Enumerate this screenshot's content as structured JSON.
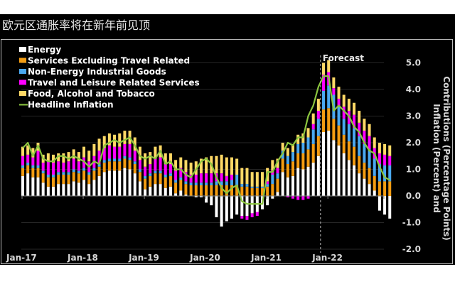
{
  "title": "欧元区通胀率将在新年前见顶",
  "chart_data": {
    "type": "bar",
    "subtype": "stacked-bar-with-line",
    "title": "欧元区通胀率将在新年前见顶",
    "xlabel": "",
    "ylabel": "Inflation (Percent) and Contributions (Percentage Points)",
    "ylim": [
      -2.0,
      5.0
    ],
    "yticks": [
      "5.0",
      "4.0",
      "3.0",
      "2.0",
      "1.0",
      "0.0",
      "-1.0",
      "-2.0"
    ],
    "ytick_values": [
      5,
      4,
      3,
      2,
      1,
      0,
      -1,
      -2
    ],
    "xtick_labels": [
      "Jan-17",
      "Jan-18",
      "Jan-19",
      "Jan-20",
      "Jan-21",
      "Jan-22"
    ],
    "xtick_month_index": [
      0,
      12,
      24,
      36,
      48,
      60
    ],
    "grid": true,
    "legend_position": "top-left",
    "annotation": {
      "label": "Forecast",
      "month_index": 58
    },
    "start_month": "Jan-17",
    "series_colors": {
      "energy": "#ffffff",
      "services": "#f39c12",
      "goods": "#4aa8f0",
      "travel": "#ff00ff",
      "food": "#ffd966",
      "headline": "#8cc63f"
    },
    "legend": [
      {
        "key": "energy",
        "label": "Energy"
      },
      {
        "key": "services",
        "label": "Services Excluding Travel Related"
      },
      {
        "key": "goods",
        "label": "Non-Energy Industrial Goods"
      },
      {
        "key": "travel",
        "label": "Travel and Leisure Related Services"
      },
      {
        "key": "food",
        "label": "Food, Alcohol and Tobacco"
      },
      {
        "key": "headline",
        "label": "Headline Inflation"
      }
    ],
    "series": [
      {
        "name": "Energy",
        "key": "energy",
        "values": [
          0.75,
          0.85,
          0.7,
          0.7,
          0.5,
          0.35,
          0.35,
          0.45,
          0.45,
          0.45,
          0.55,
          0.5,
          0.6,
          0.45,
          0.6,
          0.75,
          0.9,
          0.95,
          0.95,
          0.95,
          1.05,
          1.0,
          0.85,
          0.55,
          0.25,
          0.35,
          0.45,
          0.45,
          0.3,
          0.35,
          0.1,
          0.2,
          0.05,
          0.0,
          -0.05,
          -0.05,
          -0.25,
          -0.35,
          -0.8,
          -1.15,
          -0.95,
          -0.85,
          -0.7,
          -0.75,
          -0.75,
          -0.65,
          -0.6,
          -0.5,
          -0.35,
          -0.1,
          0.15,
          0.9,
          0.7,
          0.75,
          1.05,
          1.0,
          1.1,
          1.25,
          1.5,
          2.4,
          2.45,
          2.1,
          1.9,
          1.6,
          1.35,
          1.15,
          0.85,
          0.65,
          0.45,
          0.2,
          -0.55,
          -0.7,
          -0.85
        ]
      },
      {
        "name": "Services Excluding Travel Related",
        "key": "services",
        "values": [
          0.3,
          0.3,
          0.35,
          0.35,
          0.35,
          0.35,
          0.35,
          0.35,
          0.35,
          0.35,
          0.35,
          0.35,
          0.35,
          0.35,
          0.35,
          0.35,
          0.35,
          0.35,
          0.35,
          0.35,
          0.35,
          0.35,
          0.35,
          0.35,
          0.4,
          0.4,
          0.4,
          0.4,
          0.4,
          0.4,
          0.4,
          0.4,
          0.4,
          0.4,
          0.4,
          0.4,
          0.4,
          0.4,
          0.4,
          0.4,
          0.4,
          0.4,
          0.4,
          0.35,
          0.35,
          0.3,
          0.3,
          0.3,
          0.35,
          0.45,
          0.5,
          0.5,
          0.5,
          0.55,
          0.55,
          0.6,
          0.65,
          0.7,
          0.75,
          0.85,
          0.85,
          0.8,
          0.75,
          0.7,
          0.7,
          0.7,
          0.65,
          0.6,
          0.6,
          0.55,
          0.55,
          0.55,
          0.55
        ]
      },
      {
        "name": "Non-Energy Industrial Goods",
        "key": "goods",
        "values": [
          0.1,
          0.1,
          0.1,
          0.1,
          0.1,
          0.1,
          0.1,
          0.1,
          0.1,
          0.1,
          0.1,
          0.1,
          0.1,
          0.1,
          0.1,
          0.1,
          0.1,
          0.1,
          0.1,
          0.1,
          0.1,
          0.1,
          0.1,
          0.1,
          0.1,
          0.1,
          0.1,
          0.1,
          0.1,
          0.1,
          0.1,
          0.1,
          0.1,
          0.1,
          0.1,
          0.1,
          0.1,
          0.1,
          0.15,
          0.15,
          0.15,
          0.2,
          0.4,
          0.1,
          0.1,
          0.05,
          0.05,
          0.05,
          0.1,
          0.35,
          0.2,
          0.3,
          0.3,
          0.35,
          0.35,
          0.4,
          0.45,
          0.55,
          0.65,
          0.7,
          0.85,
          0.9,
          0.7,
          0.6,
          0.65,
          0.7,
          0.75,
          0.7,
          0.7,
          0.65,
          0.65,
          0.6,
          0.6
        ]
      },
      {
        "name": "Travel and Leisure Related Services",
        "key": "travel",
        "values": [
          0.35,
          0.3,
          0.3,
          0.55,
          0.3,
          0.5,
          0.45,
          0.4,
          0.35,
          0.4,
          0.4,
          0.35,
          0.4,
          0.4,
          0.45,
          0.5,
          0.45,
          0.5,
          0.45,
          0.45,
          0.45,
          0.5,
          0.4,
          0.35,
          0.35,
          0.35,
          0.45,
          0.5,
          0.4,
          0.35,
          0.35,
          0.35,
          0.35,
          0.3,
          0.3,
          0.35,
          0.35,
          0.35,
          0.3,
          0.3,
          0.2,
          0.2,
          0.0,
          -0.1,
          -0.15,
          -0.15,
          -0.15,
          0.0,
          0.1,
          0.15,
          0.2,
          0.0,
          -0.05,
          -0.1,
          -0.15,
          -0.15,
          -0.1,
          0.2,
          0.3,
          0.6,
          0.5,
          0.25,
          0.3,
          0.45,
          0.5,
          0.5,
          0.5,
          0.5,
          0.5,
          0.4,
          0.4,
          0.4,
          0.35
        ]
      },
      {
        "name": "Food, Alcohol and Tobacco",
        "key": "food",
        "values": [
          0.35,
          0.35,
          0.35,
          0.3,
          0.3,
          0.3,
          0.3,
          0.3,
          0.35,
          0.35,
          0.35,
          0.35,
          0.4,
          0.4,
          0.45,
          0.45,
          0.45,
          0.45,
          0.45,
          0.5,
          0.5,
          0.5,
          0.5,
          0.5,
          0.5,
          0.45,
          0.45,
          0.45,
          0.4,
          0.4,
          0.4,
          0.4,
          0.45,
          0.45,
          0.5,
          0.55,
          0.6,
          0.65,
          0.65,
          0.7,
          0.7,
          0.65,
          0.6,
          0.6,
          0.6,
          0.55,
          0.55,
          0.55,
          0.5,
          0.4,
          0.35,
          0.3,
          0.3,
          0.3,
          0.35,
          0.35,
          0.35,
          0.4,
          0.45,
          0.45,
          0.45,
          0.4,
          0.45,
          0.45,
          0.45,
          0.45,
          0.45,
          0.45,
          0.45,
          0.4,
          0.4,
          0.4,
          0.4
        ]
      },
      {
        "name": "Headline Inflation",
        "key": "headline",
        "values": [
          1.8,
          2.0,
          1.5,
          1.9,
          1.4,
          1.3,
          1.3,
          1.5,
          1.5,
          1.4,
          1.5,
          1.4,
          1.3,
          1.1,
          1.3,
          1.2,
          1.9,
          2.0,
          2.1,
          2.0,
          2.1,
          2.2,
          1.9,
          1.5,
          1.4,
          1.5,
          1.4,
          1.7,
          1.2,
          1.3,
          1.0,
          1.0,
          0.8,
          0.7,
          1.0,
          1.3,
          1.4,
          1.2,
          0.7,
          0.3,
          0.1,
          0.3,
          0.4,
          -0.2,
          -0.3,
          -0.3,
          -0.3,
          -0.3,
          0.9,
          0.9,
          1.3,
          1.6,
          2.0,
          1.9,
          2.2,
          2.2,
          3.0,
          3.4,
          4.1,
          4.5,
          4.5,
          3.2,
          3.4,
          3.2,
          3.0,
          2.6,
          2.4,
          2.0,
          1.7,
          1.6,
          1.1,
          0.7,
          0.6
        ]
      }
    ]
  }
}
